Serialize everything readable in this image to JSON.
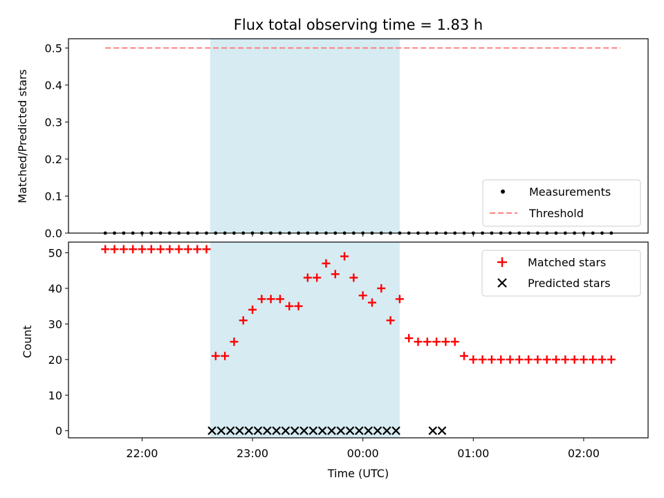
{
  "colors": {
    "band": "#add8e6",
    "matched": "#ff0000",
    "predicted": "#000000",
    "threshold": "#ff7f7f",
    "measurements": "#000000"
  },
  "chart_data": [
    {
      "type": "scatter",
      "title": "Flux total observing time = 1.83 h",
      "xlabel": "",
      "ylabel": "Matched/Predicted stars",
      "ylim": [
        0,
        0.525
      ],
      "yticks": [
        "0.0",
        "0.1",
        "0.2",
        "0.3",
        "0.4",
        "0.5"
      ],
      "shaded_band": {
        "start": "22:37",
        "end": "00:20"
      },
      "series": [
        {
          "name": "Measurements",
          "marker": "dot",
          "x": [
            "21:40",
            "21:45",
            "21:50",
            "21:55",
            "22:00",
            "22:05",
            "22:10",
            "22:15",
            "22:20",
            "22:25",
            "22:30",
            "22:35",
            "22:40",
            "22:45",
            "22:50",
            "22:55",
            "23:00",
            "23:05",
            "23:10",
            "23:15",
            "23:20",
            "23:25",
            "23:30",
            "23:35",
            "23:40",
            "23:45",
            "23:50",
            "23:55",
            "00:00",
            "00:05",
            "00:10",
            "00:15",
            "00:20",
            "00:25",
            "00:30",
            "00:35",
            "00:40",
            "00:45",
            "00:50",
            "00:55",
            "01:00",
            "01:05",
            "01:10",
            "01:15",
            "01:20",
            "01:25",
            "01:30",
            "01:35",
            "01:40",
            "01:45",
            "01:50",
            "01:55",
            "02:00",
            "02:05",
            "02:10",
            "02:15"
          ],
          "y": [
            0,
            0,
            0,
            0,
            0,
            0,
            0,
            0,
            0,
            0,
            0,
            0,
            0,
            0,
            0,
            0,
            0,
            0,
            0,
            0,
            0,
            0,
            0,
            0,
            0,
            0,
            0,
            0,
            0,
            0,
            0,
            0,
            0,
            0,
            0,
            0,
            0,
            0,
            0,
            0,
            0,
            0,
            0,
            0,
            0,
            0,
            0,
            0,
            0,
            0,
            0,
            0,
            0,
            0,
            0,
            0
          ]
        },
        {
          "name": "Threshold",
          "style": "dashed",
          "x": [
            "21:40",
            "02:20"
          ],
          "y": [
            0.5,
            0.5
          ]
        }
      ],
      "legend": "lower-right"
    },
    {
      "type": "scatter",
      "title": "",
      "xlabel": "Time (UTC)",
      "ylabel": "Count",
      "ylim": [
        -2,
        53
      ],
      "yticks": [
        "0",
        "10",
        "20",
        "30",
        "40",
        "50"
      ],
      "xticks": [
        "22:00",
        "23:00",
        "00:00",
        "01:00",
        "02:00"
      ],
      "xrange": [
        "21:20",
        "02:35"
      ],
      "shaded_band": {
        "start": "22:37",
        "end": "00:20"
      },
      "series": [
        {
          "name": "Matched stars",
          "marker": "plus",
          "x": [
            "21:40",
            "21:45",
            "21:50",
            "21:55",
            "22:00",
            "22:05",
            "22:10",
            "22:15",
            "22:20",
            "22:25",
            "22:30",
            "22:35",
            "22:40",
            "22:45",
            "22:50",
            "22:55",
            "23:00",
            "23:05",
            "23:10",
            "23:15",
            "23:20",
            "23:25",
            "23:30",
            "23:35",
            "23:40",
            "23:45",
            "23:50",
            "23:55",
            "00:00",
            "00:05",
            "00:10",
            "00:15",
            "00:20",
            "00:25",
            "00:30",
            "00:35",
            "00:40",
            "00:45",
            "00:50",
            "00:55",
            "01:00",
            "01:05",
            "01:10",
            "01:15",
            "01:20",
            "01:25",
            "01:30",
            "01:35",
            "01:40",
            "01:45",
            "01:50",
            "01:55",
            "02:00",
            "02:05",
            "02:10",
            "02:15"
          ],
          "y": [
            51,
            51,
            51,
            51,
            51,
            51,
            51,
            51,
            51,
            51,
            51,
            51,
            21,
            21,
            25,
            31,
            34,
            37,
            37,
            37,
            35,
            35,
            43,
            43,
            47,
            44,
            49,
            43,
            38,
            36,
            40,
            31,
            37,
            26,
            25,
            25,
            25,
            25,
            25,
            21,
            20,
            20,
            20,
            20,
            20,
            20,
            20,
            20,
            20,
            20,
            20,
            20,
            20,
            20,
            20,
            20
          ]
        },
        {
          "name": "Predicted stars",
          "marker": "x",
          "x": [
            "22:38",
            "22:43",
            "22:48",
            "22:53",
            "22:58",
            "23:03",
            "23:08",
            "23:13",
            "23:18",
            "23:23",
            "23:28",
            "23:33",
            "23:38",
            "23:43",
            "23:48",
            "23:53",
            "23:58",
            "00:03",
            "00:08",
            "00:13",
            "00:18",
            "00:38",
            "00:43"
          ],
          "y": [
            0,
            0,
            0,
            0,
            0,
            0,
            0,
            0,
            0,
            0,
            0,
            0,
            0,
            0,
            0,
            0,
            0,
            0,
            0,
            0,
            0,
            0,
            0
          ]
        }
      ],
      "legend": "top-right"
    }
  ]
}
